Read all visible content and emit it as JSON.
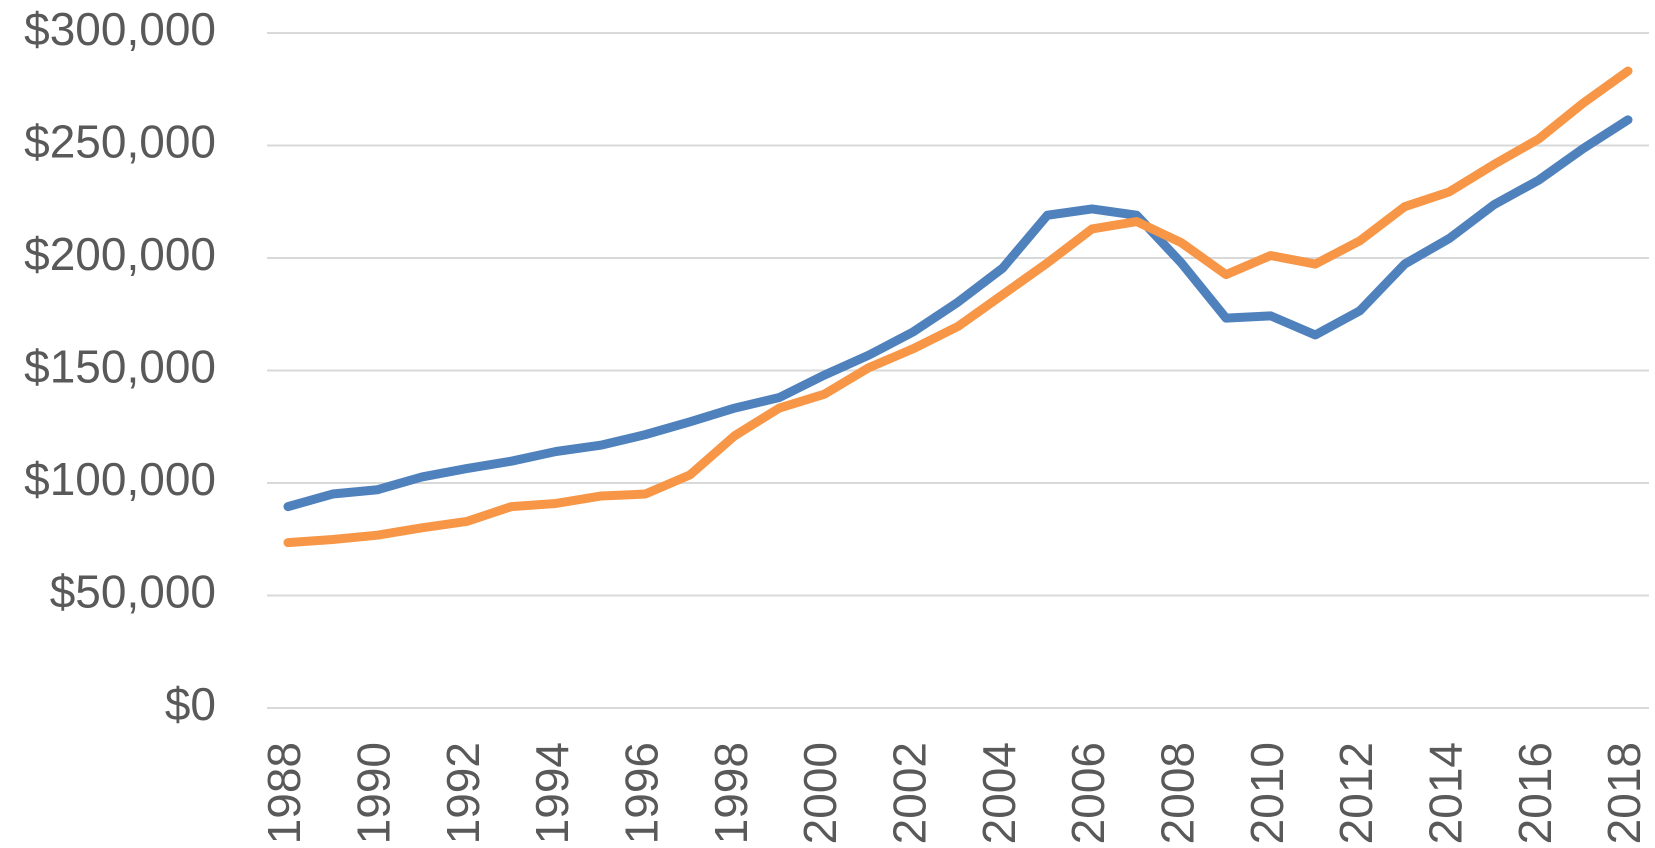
{
  "chart_data": {
    "type": "line",
    "x": [
      1988,
      1989,
      1990,
      1991,
      1992,
      1993,
      1994,
      1995,
      1996,
      1997,
      1998,
      1999,
      2000,
      2001,
      2002,
      2003,
      2004,
      2005,
      2006,
      2007,
      2008,
      2009,
      2010,
      2011,
      2012,
      2013,
      2014,
      2015,
      2016,
      2017,
      2018
    ],
    "xlim": [
      1988,
      2018
    ],
    "xticks": [
      1988,
      1990,
      1992,
      1994,
      1996,
      1998,
      2000,
      2002,
      2004,
      2006,
      2008,
      2010,
      2012,
      2014,
      2016,
      2018
    ],
    "ylim": [
      0,
      300000
    ],
    "yticks": [
      {
        "value": 0,
        "label": "$0"
      },
      {
        "value": 50000,
        "label": "$50,000"
      },
      {
        "value": 100000,
        "label": "$100,000"
      },
      {
        "value": 150000,
        "label": "$150,000"
      },
      {
        "value": 200000,
        "label": "$200,000"
      },
      {
        "value": 250000,
        "label": "$250,000"
      },
      {
        "value": 300000,
        "label": "$300,000"
      }
    ],
    "grid": true,
    "series": [
      {
        "color": "#4f81bd",
        "values": [
          89500,
          95100,
          97000,
          102700,
          106400,
          109700,
          114000,
          116800,
          121500,
          127200,
          133300,
          138000,
          147900,
          156800,
          167200,
          180400,
          195500,
          219000,
          221800,
          219000,
          197800,
          173300,
          174300,
          165800,
          176600,
          197300,
          208700,
          223700,
          234600,
          248700,
          261400
        ]
      },
      {
        "color": "#f79646",
        "values": [
          73500,
          74900,
          76800,
          80100,
          82900,
          89500,
          90900,
          94200,
          95100,
          103600,
          121000,
          133300,
          139400,
          151200,
          159700,
          169600,
          183700,
          197800,
          212900,
          216200,
          206800,
          192600,
          201100,
          197300,
          207700,
          222800,
          229400,
          241600,
          252900,
          268900,
          283100
        ]
      }
    ]
  }
}
